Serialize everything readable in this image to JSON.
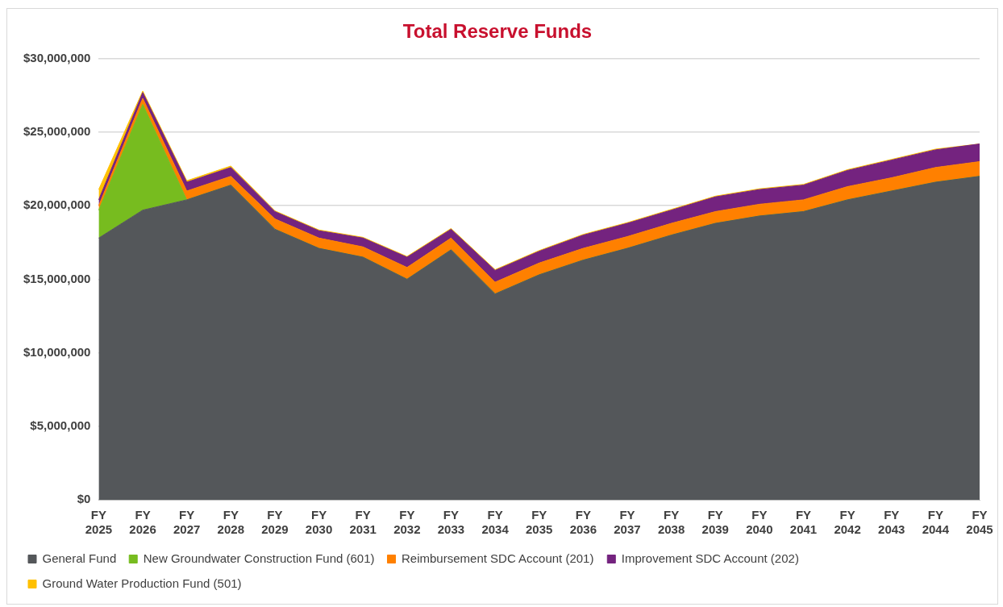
{
  "chart_data": {
    "type": "area",
    "stacked": true,
    "title": "Total Reserve Funds",
    "categories": [
      "FY 2025",
      "FY 2026",
      "FY 2027",
      "FY 2028",
      "FY 2029",
      "FY 2030",
      "FY 2031",
      "FY 2032",
      "FY 2033",
      "FY 2034",
      "FY 2035",
      "FY 2036",
      "FY 2037",
      "FY 2038",
      "FY 2039",
      "FY 2040",
      "FY 2041",
      "FY 2042",
      "FY 2043",
      "FY 2044",
      "FY 2045"
    ],
    "series": [
      {
        "name": "General Fund",
        "color": "#54575a",
        "values": [
          17800000,
          19700000,
          20400000,
          21400000,
          18400000,
          17100000,
          16500000,
          15000000,
          17000000,
          14000000,
          15300000,
          16300000,
          17100000,
          18000000,
          18800000,
          19300000,
          19600000,
          20400000,
          21000000,
          21600000,
          22000000
        ]
      },
      {
        "name": "New Groundwater Construction Fund (601)",
        "color": "#77bc1f",
        "values": [
          1900000,
          7200000,
          0,
          0,
          0,
          0,
          0,
          0,
          0,
          0,
          0,
          0,
          0,
          0,
          0,
          0,
          0,
          0,
          0,
          0,
          0
        ]
      },
      {
        "name": "Reimbursement SDC Account (201)",
        "color": "#ff8000",
        "values": [
          300000,
          400000,
          600000,
          600000,
          700000,
          700000,
          700000,
          800000,
          800000,
          800000,
          800000,
          800000,
          800000,
          800000,
          800000,
          800000,
          800000,
          900000,
          900000,
          1000000,
          1000000
        ]
      },
      {
        "name": "Improvement SDC Account (202)",
        "color": "#74237f",
        "values": [
          400000,
          400000,
          600000,
          600000,
          500000,
          500000,
          600000,
          700000,
          600000,
          800000,
          800000,
          900000,
          900000,
          900000,
          1000000,
          1000000,
          1000000,
          1100000,
          1200000,
          1200000,
          1200000
        ]
      },
      {
        "name": "Ground Water Production Fund (501)",
        "color": "#ffc000",
        "values": [
          700000,
          100000,
          100000,
          100000,
          50000,
          50000,
          50000,
          50000,
          50000,
          50000,
          50000,
          50000,
          50000,
          50000,
          50000,
          50000,
          50000,
          50000,
          50000,
          50000,
          0
        ]
      }
    ],
    "ylim": [
      0,
      30000000
    ],
    "yticks": [
      {
        "value": 0,
        "label": "$0"
      },
      {
        "value": 5000000,
        "label": "$5,000,000"
      },
      {
        "value": 10000000,
        "label": "$10,000,000"
      },
      {
        "value": 15000000,
        "label": "$15,000,000"
      },
      {
        "value": 20000000,
        "label": "$20,000,000"
      },
      {
        "value": 25000000,
        "label": "$25,000,000"
      },
      {
        "value": 30000000,
        "label": "$30,000,000"
      }
    ],
    "grid": "y",
    "legend": "bottom"
  }
}
